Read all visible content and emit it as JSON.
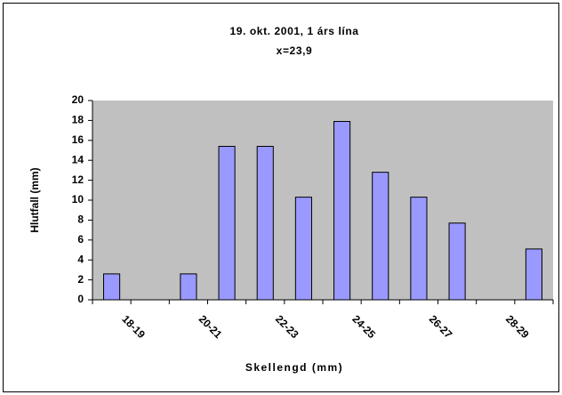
{
  "chart_data": {
    "type": "bar",
    "title": "19. okt. 2001, 1 árs lína",
    "subtitle": "x=23,9",
    "x_label": "Skellengd (mm)",
    "y_label": "Hlutfall (mm)",
    "categories": [
      null,
      "18-19",
      null,
      "20-21",
      null,
      "22-23",
      null,
      "24-25",
      null,
      "26-27",
      null,
      "28-29"
    ],
    "values": [
      2.6,
      0,
      2.6,
      15.4,
      15.4,
      10.3,
      17.9,
      12.8,
      10.3,
      7.7,
      0,
      5.1
    ],
    "color": "#9999ff",
    "background": "#c0c0c0",
    "ylim": [
      0,
      20
    ],
    "yticks": [
      0,
      2,
      4,
      6,
      8,
      10,
      12,
      14,
      16,
      18,
      20
    ],
    "grid": false
  }
}
